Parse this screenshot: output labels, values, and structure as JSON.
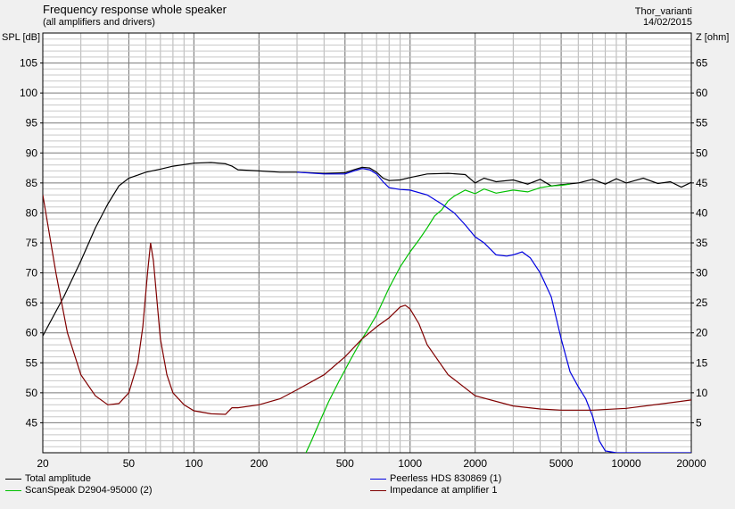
{
  "header": {
    "title": "Frequency response whole speaker",
    "subtitle": "(all amplifiers and drivers)",
    "project": "Thor_varianti",
    "date": "14/02/2015"
  },
  "chart_data": {
    "type": "line",
    "x_scale": "log",
    "xlim": [
      20,
      20000
    ],
    "ylim_left": [
      40,
      110
    ],
    "ylim_right": [
      0,
      70
    ],
    "ylabel_left": "SPL [dB]",
    "ylabel_right": "Z [ohm]",
    "x_ticks": [
      20,
      50,
      100,
      200,
      500,
      1000,
      2000,
      5000,
      10000,
      20000
    ],
    "x_tick_labels": [
      "20",
      "50",
      "100",
      "200",
      "500",
      "1000",
      "2000",
      "5000",
      "10000",
      "20000"
    ],
    "y_ticks_left": [
      45,
      50,
      55,
      60,
      65,
      70,
      75,
      80,
      85,
      90,
      95,
      100,
      105
    ],
    "y_ticks_left_labels": [
      "45",
      "50",
      "55",
      "60",
      "65",
      "70",
      "75",
      "80",
      "85",
      "90",
      "95",
      "100",
      "105"
    ],
    "y_ticks_right": [
      5,
      10,
      15,
      20,
      25,
      30,
      35,
      40,
      45,
      50,
      55,
      60,
      65
    ],
    "y_ticks_right_labels": [
      "5",
      "10",
      "15",
      "20",
      "25",
      "30",
      "35",
      "40",
      "45",
      "50",
      "55",
      "60",
      "65"
    ],
    "grid": true,
    "legend": [
      {
        "name": "Total amplitude",
        "color": "#000000"
      },
      {
        "name": "ScanSpeak D2904-95000 (2)",
        "color": "#00c000"
      },
      {
        "name": "Peerless HDS 830869 (1)",
        "color": "#0000e0"
      },
      {
        "name": "Impedance at amplifier 1",
        "color": "#800000"
      }
    ],
    "series": [
      {
        "name": "Total amplitude",
        "color": "#000000",
        "axis": "left",
        "x": [
          20,
          25,
          30,
          35,
          40,
          45,
          50,
          55,
          60,
          70,
          80,
          100,
          120,
          140,
          150,
          160,
          200,
          250,
          300,
          400,
          500,
          550,
          600,
          650,
          700,
          750,
          800,
          900,
          1000,
          1200,
          1500,
          1800,
          2000,
          2200,
          2500,
          3000,
          3500,
          4000,
          4500,
          5000,
          6000,
          7000,
          8000,
          9000,
          10000,
          12000,
          14000,
          16000,
          18000,
          20000
        ],
        "y": [
          59.5,
          66,
          72,
          77.5,
          81.5,
          84.5,
          85.8,
          86.3,
          86.8,
          87.3,
          87.8,
          88.3,
          88.4,
          88.2,
          87.8,
          87.2,
          87.0,
          86.8,
          86.8,
          86.6,
          86.7,
          87.2,
          87.6,
          87.5,
          86.8,
          85.8,
          85.4,
          85.5,
          85.9,
          86.5,
          86.6,
          86.4,
          85.0,
          85.8,
          85.2,
          85.5,
          84.8,
          85.6,
          84.5,
          84.7,
          85.0,
          85.6,
          84.8,
          85.7,
          85.0,
          85.8,
          84.9,
          85.2,
          84.3,
          85.1
        ]
      },
      {
        "name": "ScanSpeak D2904-95000 (2)",
        "color": "#00c000",
        "axis": "left",
        "x": [
          330,
          350,
          380,
          420,
          470,
          530,
          600,
          650,
          700,
          800,
          900,
          1000,
          1100,
          1200,
          1300,
          1400,
          1500,
          1600,
          1800,
          2000,
          2200,
          2500,
          3000,
          3500,
          4000,
          4500,
          5000,
          5500
        ],
        "y": [
          40,
          42,
          45,
          48.5,
          52,
          55.5,
          59,
          61,
          63,
          67.5,
          71,
          73.5,
          75.5,
          77.5,
          79.5,
          80.5,
          82,
          82.8,
          83.8,
          83.2,
          84.0,
          83.3,
          83.8,
          83.5,
          84.2,
          84.5,
          84.6,
          84.8
        ]
      },
      {
        "name": "Peerless HDS 830869 (1)",
        "color": "#0000e0",
        "axis": "left",
        "x": [
          300,
          400,
          500,
          550,
          600,
          650,
          700,
          750,
          800,
          900,
          1000,
          1200,
          1400,
          1600,
          1800,
          2000,
          2200,
          2500,
          2800,
          3000,
          3300,
          3600,
          4000,
          4500,
          5000,
          5500,
          6000,
          6500,
          7000,
          7500,
          8000,
          9000,
          10000,
          15000,
          20000
        ],
        "y": [
          86.8,
          86.5,
          86.5,
          87.0,
          87.4,
          87.2,
          86.5,
          85.2,
          84.2,
          83.9,
          83.8,
          83.0,
          81.5,
          80.0,
          78.0,
          76.0,
          75.0,
          73.0,
          72.8,
          73.0,
          73.5,
          72.5,
          70.0,
          66.0,
          59.0,
          53.5,
          51.0,
          49.0,
          46.0,
          42.0,
          40.3,
          40.0,
          40.0,
          40.0,
          40.0
        ]
      },
      {
        "name": "Impedance at amplifier 1",
        "color": "#800000",
        "axis": "right",
        "x": [
          20,
          23,
          26,
          30,
          35,
          40,
          45,
          50,
          55,
          58,
          61,
          63,
          65,
          68,
          70,
          75,
          80,
          90,
          100,
          120,
          140,
          150,
          160,
          200,
          250,
          300,
          400,
          500,
          600,
          700,
          800,
          900,
          950,
          1000,
          1100,
          1200,
          1500,
          2000,
          3000,
          4000,
          5000,
          7000,
          10000,
          15000,
          20000
        ],
        "y": [
          43,
          30,
          20,
          13,
          9.5,
          8,
          8.2,
          10,
          15,
          21,
          30,
          35,
          32,
          24,
          19,
          13,
          10,
          8,
          7,
          6.5,
          6.4,
          7.5,
          7.5,
          8,
          9,
          10.5,
          13,
          16,
          19,
          21,
          22.5,
          24.3,
          24.6,
          24,
          21.5,
          18,
          13,
          9.5,
          7.8,
          7.3,
          7.1,
          7.1,
          7.4,
          8.2,
          8.8
        ]
      }
    ]
  }
}
